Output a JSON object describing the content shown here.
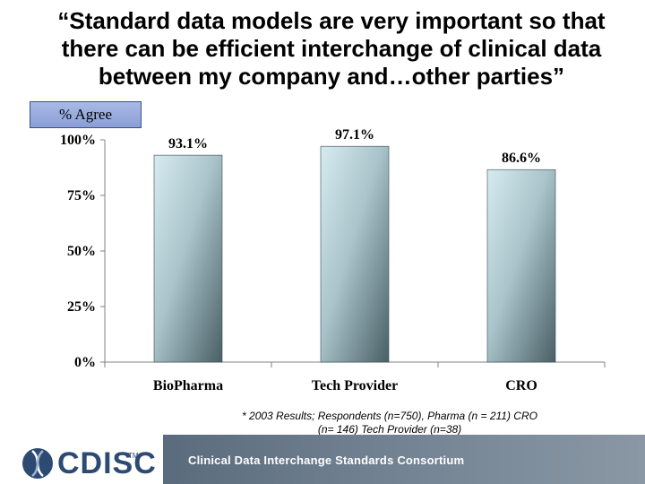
{
  "title": "“Standard data models are very important so that there can be efficient interchange of clinical data between my company and…other parties”",
  "legend_label": "% Agree",
  "footnote": "* 2003 Results; Respondents (n=750), Pharma (n = 211) CRO (n= 146) Tech Provider (n=38)",
  "footer": {
    "logo_text": "CDISC",
    "logo_tm": "TM",
    "tagline": "Clinical Data Interchange Standards Consortium"
  },
  "colors": {
    "bar_light": "#cfe4ea",
    "bar_dark": "#4a5f66",
    "axis": "#808080"
  },
  "chart_data": {
    "type": "bar",
    "categories": [
      "BioPharma",
      "Tech Provider",
      "CRO"
    ],
    "values": [
      93.1,
      97.1,
      86.6
    ],
    "value_labels": [
      "93.1%",
      "97.1%",
      "86.6%"
    ],
    "y_ticks": [
      0,
      25,
      50,
      75,
      100
    ],
    "y_tick_labels": [
      "0%",
      "25%",
      "50%",
      "75%",
      "100%"
    ],
    "ylim": [
      0,
      100
    ],
    "grid": false,
    "legend": "% Agree",
    "legend_placement": "top-left"
  }
}
